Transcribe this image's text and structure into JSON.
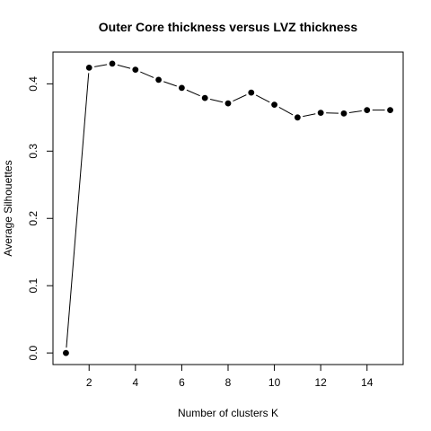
{
  "chart_data": {
    "type": "line",
    "title": "Outer Core thickness versus LVZ thickness",
    "xlabel": "Number of clusters K",
    "ylabel": "Average Silhouettes",
    "xlim": [
      0.44,
      15.56
    ],
    "ylim": [
      -0.0172,
      0.4472
    ],
    "x_ticks": [
      2,
      4,
      6,
      8,
      10,
      12,
      14
    ],
    "x_tick_labels": [
      "2",
      "4",
      "6",
      "8",
      "10",
      "12",
      "14"
    ],
    "y_ticks": [
      0.0,
      0.1,
      0.2,
      0.3,
      0.4
    ],
    "y_tick_labels": [
      "0.0",
      "0.1",
      "0.2",
      "0.3",
      "0.4"
    ],
    "grid": false,
    "legend": "none",
    "series": [
      {
        "x": [
          1,
          2,
          3,
          4,
          5,
          6,
          7,
          8,
          9,
          10,
          11,
          12,
          13,
          14,
          15
        ],
        "values": [
          0.0,
          0.424,
          0.43,
          0.421,
          0.406,
          0.394,
          0.379,
          0.371,
          0.387,
          0.369,
          0.35,
          0.357,
          0.356,
          0.361,
          0.361
        ]
      }
    ],
    "colors": {
      "line": "#000000",
      "point": "#000000",
      "frame": "#000000"
    }
  }
}
